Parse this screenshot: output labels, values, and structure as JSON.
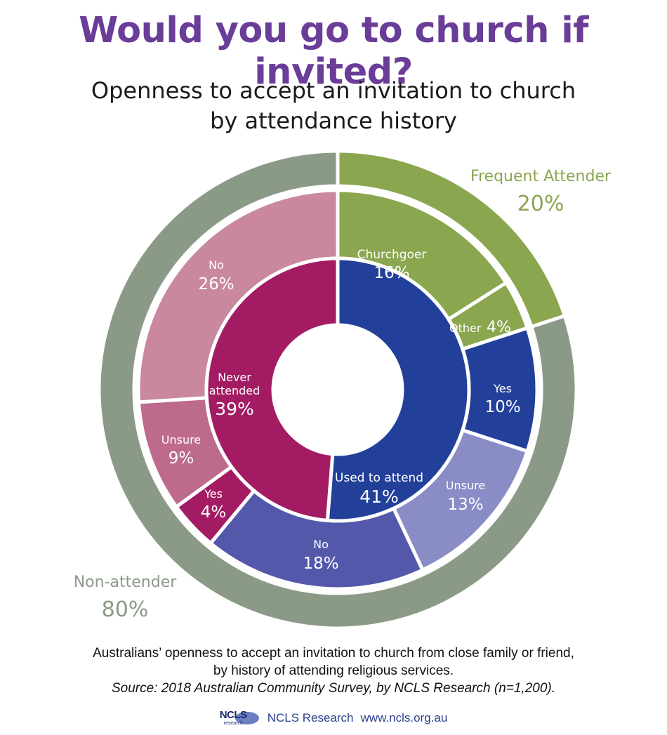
{
  "title": "Would you go to church if invited?",
  "subtitle_line1": "Openness to accept an invitation to church",
  "subtitle_line2": "by attendance history",
  "caption_line1": "Australians’ openness to accept an invitation to church from close family or friend,",
  "caption_line2": "by history of attending religious services.",
  "source": "Source: 2018 Australian Community Survey, by NCLS Research (n=1,200).",
  "footer": {
    "logo_text": "NCLS",
    "logo_subtext": "research",
    "org": "NCLS Research",
    "url": "www.ncls.org.au"
  },
  "chart_data": {
    "type": "pie",
    "subtype": "multi-level donut",
    "outer_ring": [
      {
        "label": "Frequent Attender",
        "value": 20,
        "display": "20%",
        "color": "#8aa64f"
      },
      {
        "label": "Non-attender",
        "value": 80,
        "display": "80%",
        "color": "#8b9a87"
      }
    ],
    "middle_ring": [
      {
        "label": "Churchgoer",
        "value": 16,
        "display": "16%",
        "color": "#8aa64f",
        "parent": "Frequent Attender"
      },
      {
        "label": "Other",
        "value": 4,
        "display": "4%",
        "color": "#8aa64f",
        "parent": "Frequent Attender"
      },
      {
        "label": "Yes",
        "value": 10,
        "display": "10%",
        "color": "#22409a",
        "parent": "Used to attend"
      },
      {
        "label": "Unsure",
        "value": 13,
        "display": "13%",
        "color": "#8a8cc6",
        "parent": "Used to attend"
      },
      {
        "label": "No",
        "value": 18,
        "display": "18%",
        "color": "#5358aa",
        "parent": "Used to attend"
      },
      {
        "label": "Yes",
        "value": 4,
        "display": "4%",
        "color": "#a31c63",
        "parent": "Never attended"
      },
      {
        "label": "Unsure",
        "value": 9,
        "display": "9%",
        "color": "#bd6a8c",
        "parent": "Never attended"
      },
      {
        "label": "No",
        "value": 26,
        "display": "26%",
        "color": "#c9889e",
        "parent": "Never attended"
      }
    ],
    "inner_ring": [
      {
        "label": "Used to attend",
        "value": 41,
        "display": "41%",
        "color": "#22409a"
      },
      {
        "label": "Never attended",
        "value": 39,
        "display": "39%",
        "color": "#a31c63"
      }
    ]
  }
}
